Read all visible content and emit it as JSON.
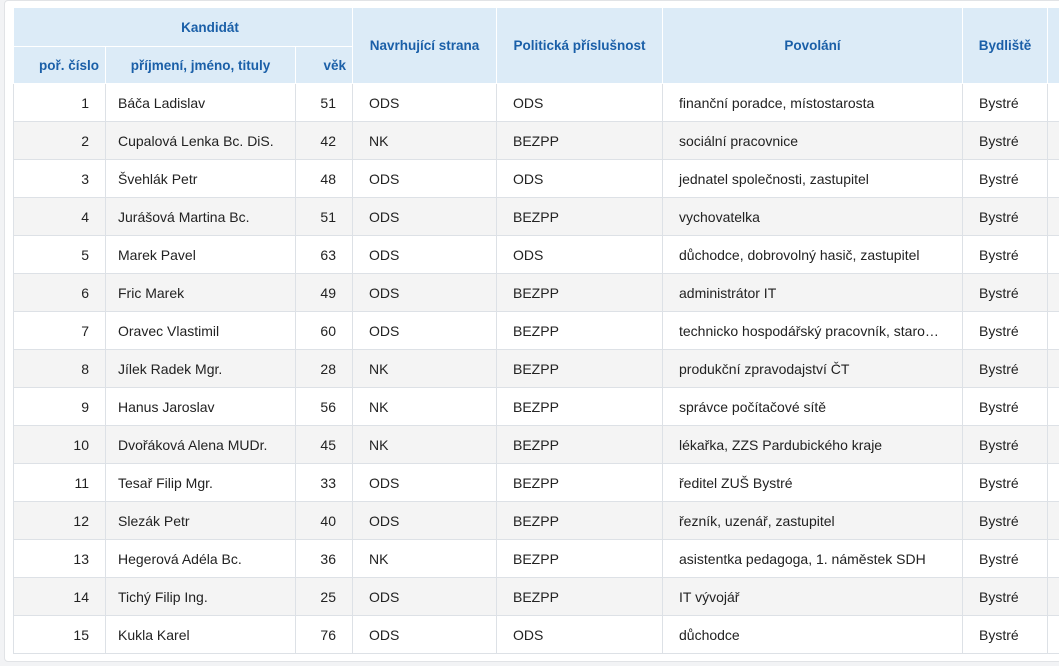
{
  "table": {
    "header": {
      "group_candidate": "Kandidát",
      "col_number": "poř. číslo",
      "col_name": "příjmení, jméno, tituly",
      "col_age": "věk",
      "col_party": "Navrhující strana",
      "col_affiliation": "Politická příslušnost",
      "col_occupation": "Povolání",
      "col_residence": "Bydliště"
    },
    "rows": [
      {
        "number": "1",
        "name": "Báča Ladislav",
        "age": "51",
        "party": "ODS",
        "affiliation": "ODS",
        "occupation": "finanční poradce, místostarosta",
        "residence": "Bystré"
      },
      {
        "number": "2",
        "name": "Cupalová Lenka Bc. DiS.",
        "age": "42",
        "party": "NK",
        "affiliation": "BEZPP",
        "occupation": "sociální pracovnice",
        "residence": "Bystré"
      },
      {
        "number": "3",
        "name": "Švehlák Petr",
        "age": "48",
        "party": "ODS",
        "affiliation": "ODS",
        "occupation": "jednatel společnosti, zastupitel",
        "residence": "Bystré"
      },
      {
        "number": "4",
        "name": "Jurášová Martina Bc.",
        "age": "51",
        "party": "ODS",
        "affiliation": "BEZPP",
        "occupation": "vychovatelka",
        "residence": "Bystré"
      },
      {
        "number": "5",
        "name": "Marek Pavel",
        "age": "63",
        "party": "ODS",
        "affiliation": "ODS",
        "occupation": "důchodce, dobrovolný hasič, zastupitel",
        "residence": "Bystré"
      },
      {
        "number": "6",
        "name": "Fric Marek",
        "age": "49",
        "party": "ODS",
        "affiliation": "BEZPP",
        "occupation": "administrátor IT",
        "residence": "Bystré"
      },
      {
        "number": "7",
        "name": "Oravec Vlastimil",
        "age": "60",
        "party": "ODS",
        "affiliation": "BEZPP",
        "occupation": "technicko hospodářský pracovník, staro…",
        "residence": "Bystré"
      },
      {
        "number": "8",
        "name": "Jílek Radek Mgr.",
        "age": "28",
        "party": "NK",
        "affiliation": "BEZPP",
        "occupation": "produkční zpravodajství ČT",
        "residence": "Bystré"
      },
      {
        "number": "9",
        "name": "Hanus Jaroslav",
        "age": "56",
        "party": "NK",
        "affiliation": "BEZPP",
        "occupation": "správce počítačové sítě",
        "residence": "Bystré"
      },
      {
        "number": "10",
        "name": "Dvořáková Alena MUDr.",
        "age": "45",
        "party": "NK",
        "affiliation": "BEZPP",
        "occupation": "lékařka, ZZS Pardubického kraje",
        "residence": "Bystré"
      },
      {
        "number": "11",
        "name": "Tesař Filip Mgr.",
        "age": "33",
        "party": "ODS",
        "affiliation": "BEZPP",
        "occupation": "ředitel ZUŠ Bystré",
        "residence": "Bystré"
      },
      {
        "number": "12",
        "name": "Slezák Petr",
        "age": "40",
        "party": "ODS",
        "affiliation": "BEZPP",
        "occupation": "řezník, uzenář, zastupitel",
        "residence": "Bystré"
      },
      {
        "number": "13",
        "name": "Hegerová Adéla Bc.",
        "age": "36",
        "party": "NK",
        "affiliation": "BEZPP",
        "occupation": "asistentka pedagoga, 1. náměstek SDH",
        "residence": "Bystré"
      },
      {
        "number": "14",
        "name": "Tichý Filip Ing.",
        "age": "25",
        "party": "ODS",
        "affiliation": "BEZPP",
        "occupation": "IT vývojář",
        "residence": "Bystré"
      },
      {
        "number": "15",
        "name": "Kukla Karel",
        "age": "76",
        "party": "ODS",
        "affiliation": "ODS",
        "occupation": "důchodce",
        "residence": "Bystré"
      }
    ]
  },
  "colors": {
    "header_bg": "#dcebf7",
    "header_text": "#1a5fa8",
    "row_alt_bg": "#f4f4f4",
    "border": "#dde1e6"
  }
}
